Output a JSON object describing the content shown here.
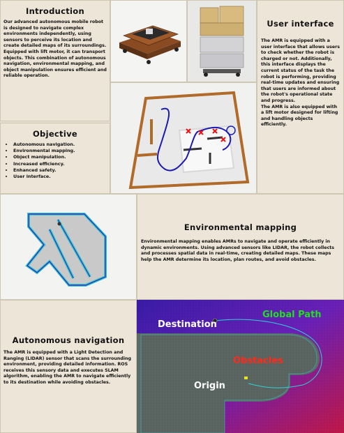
{
  "introduction": {
    "title": "Introduction",
    "text": "Our advanced autonomous mobile robot is designed to navigate complex environments independently, using sensors to perceive its location and create detailed maps of its surroundings. Equipped with lift motor, it can transport objects. This combination of autonomous navigation, environmental mapping, and object manipulation ensures efficient and reliable operation."
  },
  "objective": {
    "title": "Objective",
    "items": [
      "Autonomous navigation.",
      "Environmental mapping.",
      "Object manipulation.",
      "Increased efficiency.",
      "Enhanced safety.",
      "User interface."
    ]
  },
  "user_interface": {
    "title": "User interface",
    "text1": "The AMR is equipped with a user interface that allows users to check whether the robot is charged or not. Additionally, this interface displays the current status of the task the robot is performing, providing real-time updates and ensuring that users are informed about the robot's operational state and progress.",
    "text2": "The AMR is also equipped with a lift motor designed for lifting and handling objects efficiently."
  },
  "environmental_mapping": {
    "title": "Environmental mapping",
    "text": "Environmental mapping enables AMRs to navigate and operate efficiently in dynamic environments. Using advanced sensors like LIDAR, the robot collects and processes spatial data in real-time, creating detailed maps. These maps help the AMR determine its location, plan routes, and avoid obstacles."
  },
  "autonomous_navigation": {
    "title": "Autonomous navigation",
    "text": "The AMR is equipped with a Light Detection and Ranging (LIDAR) sensor that scans the surrounding environment, providing detailed information. ROS receives this sensory data and executes SLAM algorithm, enabling the AMR to navigate efficiently to its destination while avoiding obstacles."
  },
  "path_map": {
    "destination": "Destination",
    "global_path": "Global Path",
    "obstacles": "Obstacles",
    "origin": "Origin",
    "colors": {
      "destination": "#ffffff",
      "global_path": "#22dd22",
      "obstacles": "#ff2a1a",
      "origin": "#ffffff"
    }
  }
}
